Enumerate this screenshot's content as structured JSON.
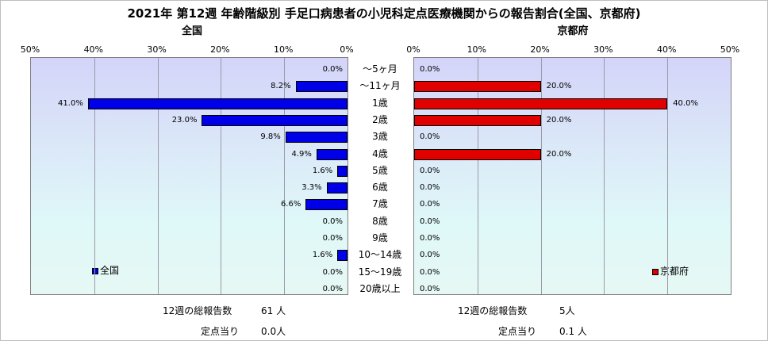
{
  "chart_data": {
    "type": "bar",
    "title": "2021年 第12週 年齢階級別 手足口病患者の小児科定点医療機関からの報告割合(全国、京都府)",
    "categories": [
      "～5ヶ月",
      "～11ヶ月",
      "1歳",
      "2歳",
      "3歳",
      "4歳",
      "5歳",
      "6歳",
      "7歳",
      "8歳",
      "9歳",
      "10～14歳",
      "15～19歳",
      "20歳以上"
    ],
    "xlim": [
      0,
      50
    ],
    "ticks": [
      "0%",
      "10%",
      "20%",
      "30%",
      "40%",
      "50%"
    ],
    "series": [
      {
        "name": "全国",
        "panel_title": "全国",
        "color": "#0000e8",
        "values": [
          0.0,
          8.2,
          41.0,
          23.0,
          9.8,
          4.9,
          1.6,
          3.3,
          6.6,
          0.0,
          0.0,
          1.6,
          0.0,
          0.0
        ],
        "labels": [
          "0.0%",
          "8.2%",
          "41.0%",
          "23.0%",
          "9.8%",
          "4.9%",
          "1.6%",
          "3.3%",
          "6.6%",
          "0.0%",
          "0.0%",
          "1.6%",
          "0.0%",
          "0.0%"
        ]
      },
      {
        "name": "京都府",
        "panel_title": "京都府",
        "color": "#e00000",
        "values": [
          0.0,
          20.0,
          40.0,
          20.0,
          0.0,
          20.0,
          0.0,
          0.0,
          0.0,
          0.0,
          0.0,
          0.0,
          0.0,
          0.0
        ],
        "labels": [
          "0.0%",
          "20.0%",
          "40.0%",
          "20.0%",
          "0.0%",
          "20.0%",
          "0.0%",
          "0.0%",
          "0.0%",
          "0.0%",
          "0.0%",
          "0.0%",
          "0.0%",
          "0.0%"
        ]
      }
    ],
    "legend": "bottom-left / bottom-right"
  },
  "footer": {
    "national": {
      "total_label": "12週の総報告数",
      "total_value": "61 人",
      "per_label": "定点当り",
      "per_value": "0.0人"
    },
    "kyoto": {
      "total_label": "12週の総報告数",
      "total_value": "5人",
      "per_label": "定点当り",
      "per_value": "0.1 人"
    }
  }
}
